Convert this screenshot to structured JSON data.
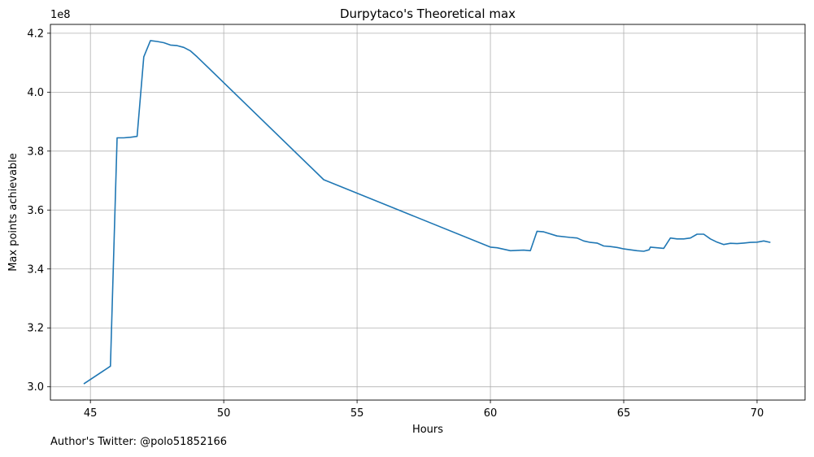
{
  "chart_data": {
    "type": "line",
    "title": "Durpytaco's Theoretical max",
    "xlabel": "Hours",
    "ylabel": "Max points achievable",
    "y_offset_label": "1e8",
    "xlim": [
      43.5,
      71.8
    ],
    "ylim": [
      2.955,
      4.23
    ],
    "x_ticks": [
      45,
      50,
      55,
      60,
      65,
      70
    ],
    "x_tick_labels": [
      "45",
      "50",
      "55",
      "60",
      "65",
      "70"
    ],
    "y_ticks": [
      3.0,
      3.2,
      3.4,
      3.6,
      3.8,
      4.0,
      4.2
    ],
    "y_tick_labels": [
      "3.0",
      "3.2",
      "3.4",
      "3.6",
      "3.8",
      "4.0",
      "4.2"
    ],
    "grid": true,
    "line_color": "#1f77b4",
    "series": [
      {
        "x": [
          44.75,
          45.75,
          46.0,
          46.25,
          46.5,
          46.75,
          47.0,
          47.25,
          47.5,
          47.75,
          48.0,
          48.25,
          48.5,
          48.75,
          49.0,
          53.75,
          60.0,
          60.25,
          60.75,
          61.25,
          61.5,
          61.75,
          62.0,
          62.5,
          63.0,
          63.25,
          63.5,
          63.75,
          64.0,
          64.25,
          64.5,
          64.75,
          65.0,
          65.25,
          65.5,
          65.75,
          65.95,
          66.0,
          66.25,
          66.5,
          66.75,
          67.0,
          67.25,
          67.5,
          67.75,
          68.0,
          68.25,
          68.5,
          68.75,
          69.0,
          69.25,
          69.5,
          69.75,
          70.0,
          70.25,
          70.5
        ],
        "values": [
          3.01,
          3.07,
          3.845,
          3.845,
          3.847,
          3.85,
          4.12,
          4.175,
          4.172,
          4.168,
          4.16,
          4.158,
          4.152,
          4.14,
          4.12,
          3.703,
          3.474,
          3.472,
          3.462,
          3.464,
          3.462,
          3.528,
          3.526,
          3.512,
          3.507,
          3.505,
          3.495,
          3.49,
          3.488,
          3.478,
          3.476,
          3.473,
          3.468,
          3.465,
          3.462,
          3.46,
          3.465,
          3.474,
          3.472,
          3.47,
          3.505,
          3.502,
          3.502,
          3.505,
          3.518,
          3.518,
          3.502,
          3.491,
          3.483,
          3.487,
          3.486,
          3.488,
          3.49,
          3.491,
          3.495,
          3.49
        ]
      }
    ]
  },
  "footer": {
    "caption": "Author's Twitter: @polo51852166"
  }
}
